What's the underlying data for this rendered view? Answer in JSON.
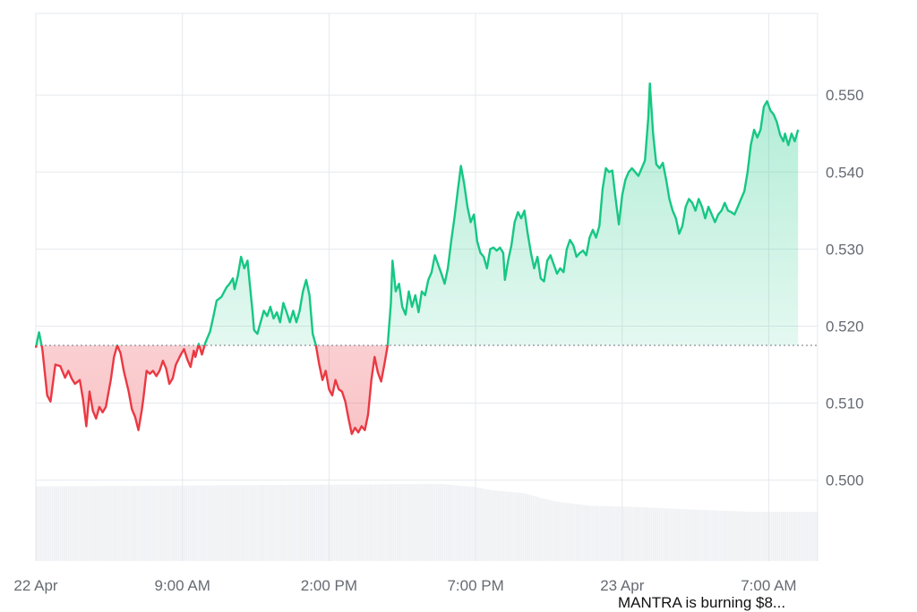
{
  "caption": "MANTRA is burning $8...",
  "chart_data": {
    "type": "area",
    "baseline": 0.5175,
    "ylim": [
      0.4895,
      0.5606
    ],
    "y_ticks": [
      0.5,
      0.51,
      0.52,
      0.53,
      0.54,
      0.55
    ],
    "y_tick_labels": [
      "0.500",
      "0.510",
      "0.520",
      "0.530",
      "0.540",
      "0.550"
    ],
    "xlim": [
      0,
      24
    ],
    "x_ticks": [
      {
        "h": 0,
        "label": "22 Apr"
      },
      {
        "h": 4.5,
        "label": "9:00 AM"
      },
      {
        "h": 9.0,
        "label": "2:00 PM"
      },
      {
        "h": 13.5,
        "label": "7:00 PM"
      },
      {
        "h": 18.0,
        "label": "23 Apr"
      },
      {
        "h": 22.5,
        "label": "7:00 AM"
      }
    ],
    "x_gridlines": [
      0,
      4.5,
      9.0,
      13.5,
      18.0,
      22.5,
      24
    ],
    "grid": true,
    "colors": {
      "above": "#16c784",
      "below": "#ea3943",
      "grid": "#e6e8ec",
      "baseline": "#8a8f98",
      "volume": "#eff1f4"
    },
    "series": [
      {
        "points": [
          [
            0,
            0.5172
          ],
          [
            0.1,
            0.5192
          ],
          [
            0.2,
            0.517
          ],
          [
            0.35,
            0.511
          ],
          [
            0.45,
            0.5102
          ],
          [
            0.6,
            0.515
          ],
          [
            0.75,
            0.5148
          ],
          [
            0.9,
            0.5133
          ],
          [
            1.0,
            0.5142
          ],
          [
            1.1,
            0.5132
          ],
          [
            1.2,
            0.5125
          ],
          [
            1.35,
            0.513
          ],
          [
            1.45,
            0.5105
          ],
          [
            1.55,
            0.507
          ],
          [
            1.65,
            0.5115
          ],
          [
            1.75,
            0.509
          ],
          [
            1.85,
            0.508
          ],
          [
            1.95,
            0.5095
          ],
          [
            2.05,
            0.5088
          ],
          [
            2.15,
            0.5095
          ],
          [
            2.3,
            0.513
          ],
          [
            2.4,
            0.516
          ],
          [
            2.5,
            0.5175
          ],
          [
            2.6,
            0.5165
          ],
          [
            2.7,
            0.5142
          ],
          [
            2.85,
            0.5115
          ],
          [
            2.95,
            0.5092
          ],
          [
            3.05,
            0.5082
          ],
          [
            3.15,
            0.5065
          ],
          [
            3.25,
            0.509
          ],
          [
            3.3,
            0.5105
          ],
          [
            3.4,
            0.5142
          ],
          [
            3.5,
            0.5138
          ],
          [
            3.6,
            0.5142
          ],
          [
            3.7,
            0.5135
          ],
          [
            3.8,
            0.5142
          ],
          [
            3.9,
            0.5155
          ],
          [
            4.0,
            0.5145
          ],
          [
            4.1,
            0.5125
          ],
          [
            4.2,
            0.5132
          ],
          [
            4.3,
            0.515
          ],
          [
            4.45,
            0.5163
          ],
          [
            4.55,
            0.517
          ],
          [
            4.65,
            0.5157
          ],
          [
            4.75,
            0.5147
          ],
          [
            4.85,
            0.5168
          ],
          [
            4.9,
            0.516
          ],
          [
            5.0,
            0.5177
          ],
          [
            5.1,
            0.5163
          ],
          [
            5.2,
            0.5178
          ],
          [
            5.35,
            0.5193
          ],
          [
            5.45,
            0.5212
          ],
          [
            5.55,
            0.5233
          ],
          [
            5.7,
            0.5238
          ],
          [
            5.85,
            0.525
          ],
          [
            5.95,
            0.5255
          ],
          [
            6.05,
            0.5262
          ],
          [
            6.1,
            0.5248
          ],
          [
            6.2,
            0.5265
          ],
          [
            6.3,
            0.529
          ],
          [
            6.4,
            0.5275
          ],
          [
            6.5,
            0.5285
          ],
          [
            6.55,
            0.5262
          ],
          [
            6.65,
            0.522
          ],
          [
            6.7,
            0.5195
          ],
          [
            6.8,
            0.519
          ],
          [
            6.9,
            0.5205
          ],
          [
            7.0,
            0.522
          ],
          [
            7.1,
            0.5213
          ],
          [
            7.2,
            0.5225
          ],
          [
            7.3,
            0.521
          ],
          [
            7.4,
            0.5218
          ],
          [
            7.5,
            0.5205
          ],
          [
            7.6,
            0.523
          ],
          [
            7.7,
            0.5218
          ],
          [
            7.8,
            0.5205
          ],
          [
            7.9,
            0.522
          ],
          [
            8.0,
            0.5205
          ],
          [
            8.1,
            0.522
          ],
          [
            8.2,
            0.5245
          ],
          [
            8.3,
            0.526
          ],
          [
            8.4,
            0.524
          ],
          [
            8.5,
            0.519
          ],
          [
            8.6,
            0.5175
          ],
          [
            8.7,
            0.515
          ],
          [
            8.8,
            0.513
          ],
          [
            8.9,
            0.5142
          ],
          [
            9.0,
            0.5118
          ],
          [
            9.1,
            0.511
          ],
          [
            9.2,
            0.513
          ],
          [
            9.3,
            0.5118
          ],
          [
            9.4,
            0.5115
          ],
          [
            9.5,
            0.5102
          ],
          [
            9.6,
            0.508
          ],
          [
            9.7,
            0.506
          ],
          [
            9.8,
            0.5068
          ],
          [
            9.9,
            0.5062
          ],
          [
            10.0,
            0.507
          ],
          [
            10.1,
            0.5065
          ],
          [
            10.2,
            0.5085
          ],
          [
            10.3,
            0.513
          ],
          [
            10.4,
            0.516
          ],
          [
            10.5,
            0.514
          ],
          [
            10.6,
            0.5128
          ],
          [
            10.7,
            0.515
          ],
          [
            10.8,
            0.5175
          ],
          [
            10.9,
            0.523
          ],
          [
            10.95,
            0.5285
          ],
          [
            11.05,
            0.5245
          ],
          [
            11.15,
            0.5255
          ],
          [
            11.25,
            0.5225
          ],
          [
            11.35,
            0.5215
          ],
          [
            11.45,
            0.5245
          ],
          [
            11.55,
            0.5225
          ],
          [
            11.65,
            0.524
          ],
          [
            11.75,
            0.5218
          ],
          [
            11.85,
            0.5245
          ],
          [
            11.95,
            0.524
          ],
          [
            12.05,
            0.526
          ],
          [
            12.15,
            0.527
          ],
          [
            12.25,
            0.5292
          ],
          [
            12.35,
            0.528
          ],
          [
            12.45,
            0.5268
          ],
          [
            12.55,
            0.5255
          ],
          [
            12.65,
            0.5275
          ],
          [
            12.75,
            0.531
          ],
          [
            12.85,
            0.534
          ],
          [
            12.95,
            0.5375
          ],
          [
            13.05,
            0.5408
          ],
          [
            13.15,
            0.5385
          ],
          [
            13.25,
            0.5355
          ],
          [
            13.35,
            0.5335
          ],
          [
            13.45,
            0.5345
          ],
          [
            13.55,
            0.531
          ],
          [
            13.65,
            0.5295
          ],
          [
            13.75,
            0.529
          ],
          [
            13.85,
            0.5275
          ],
          [
            13.95,
            0.53
          ],
          [
            14.05,
            0.5302
          ],
          [
            14.15,
            0.5298
          ],
          [
            14.25,
            0.5302
          ],
          [
            14.35,
            0.5295
          ],
          [
            14.4,
            0.526
          ],
          [
            14.5,
            0.5285
          ],
          [
            14.6,
            0.5305
          ],
          [
            14.7,
            0.5335
          ],
          [
            14.8,
            0.5348
          ],
          [
            14.9,
            0.534
          ],
          [
            15.0,
            0.535
          ],
          [
            15.1,
            0.532
          ],
          [
            15.2,
            0.5295
          ],
          [
            15.3,
            0.5275
          ],
          [
            15.4,
            0.529
          ],
          [
            15.5,
            0.5262
          ],
          [
            15.6,
            0.5258
          ],
          [
            15.7,
            0.5285
          ],
          [
            15.8,
            0.5292
          ],
          [
            15.9,
            0.528
          ],
          [
            16.0,
            0.5268
          ],
          [
            16.1,
            0.5275
          ],
          [
            16.2,
            0.527
          ],
          [
            16.3,
            0.53
          ],
          [
            16.4,
            0.5312
          ],
          [
            16.5,
            0.5305
          ],
          [
            16.6,
            0.529
          ],
          [
            16.7,
            0.5295
          ],
          [
            16.8,
            0.5298
          ],
          [
            16.9,
            0.5292
          ],
          [
            17.0,
            0.5315
          ],
          [
            17.1,
            0.5325
          ],
          [
            17.2,
            0.5315
          ],
          [
            17.3,
            0.533
          ],
          [
            17.4,
            0.5378
          ],
          [
            17.5,
            0.5405
          ],
          [
            17.6,
            0.54
          ],
          [
            17.7,
            0.5402
          ],
          [
            17.8,
            0.5365
          ],
          [
            17.9,
            0.5332
          ],
          [
            18.0,
            0.537
          ],
          [
            18.1,
            0.539
          ],
          [
            18.2,
            0.54
          ],
          [
            18.3,
            0.5405
          ],
          [
            18.4,
            0.54
          ],
          [
            18.5,
            0.5395
          ],
          [
            18.6,
            0.5405
          ],
          [
            18.7,
            0.5415
          ],
          [
            18.8,
            0.547
          ],
          [
            18.85,
            0.5515
          ],
          [
            18.95,
            0.545
          ],
          [
            19.05,
            0.541
          ],
          [
            19.15,
            0.5405
          ],
          [
            19.25,
            0.5412
          ],
          [
            19.35,
            0.539
          ],
          [
            19.45,
            0.5365
          ],
          [
            19.55,
            0.535
          ],
          [
            19.65,
            0.534
          ],
          [
            19.75,
            0.532
          ],
          [
            19.85,
            0.533
          ],
          [
            19.95,
            0.5355
          ],
          [
            20.05,
            0.5365
          ],
          [
            20.15,
            0.536
          ],
          [
            20.25,
            0.535
          ],
          [
            20.35,
            0.5365
          ],
          [
            20.45,
            0.5355
          ],
          [
            20.55,
            0.534
          ],
          [
            20.65,
            0.5355
          ],
          [
            20.75,
            0.5345
          ],
          [
            20.85,
            0.5335
          ],
          [
            20.95,
            0.5345
          ],
          [
            21.05,
            0.535
          ],
          [
            21.15,
            0.536
          ],
          [
            21.25,
            0.535
          ],
          [
            21.35,
            0.5348
          ],
          [
            21.45,
            0.5345
          ],
          [
            21.55,
            0.5355
          ],
          [
            21.65,
            0.5365
          ],
          [
            21.75,
            0.5375
          ],
          [
            21.85,
            0.54
          ],
          [
            21.95,
            0.5435
          ],
          [
            22.05,
            0.5455
          ],
          [
            22.15,
            0.5445
          ],
          [
            22.25,
            0.5455
          ],
          [
            22.35,
            0.5485
          ],
          [
            22.45,
            0.5492
          ],
          [
            22.55,
            0.548
          ],
          [
            22.65,
            0.5475
          ],
          [
            22.75,
            0.5465
          ],
          [
            22.85,
            0.5448
          ],
          [
            22.95,
            0.544
          ],
          [
            23.0,
            0.545
          ],
          [
            23.1,
            0.5435
          ],
          [
            23.2,
            0.545
          ],
          [
            23.3,
            0.544
          ],
          [
            23.4,
            0.5455
          ]
        ]
      }
    ],
    "volume_profile": [
      [
        0,
        0.97
      ],
      [
        12.5,
        1.0
      ],
      [
        13.5,
        0.96
      ],
      [
        14.0,
        0.92
      ],
      [
        15.0,
        0.88
      ],
      [
        15.5,
        0.82
      ],
      [
        16.0,
        0.77
      ],
      [
        17.0,
        0.72
      ],
      [
        18.5,
        0.7
      ],
      [
        20.0,
        0.67
      ],
      [
        22.0,
        0.64
      ],
      [
        24.0,
        0.64
      ]
    ]
  }
}
